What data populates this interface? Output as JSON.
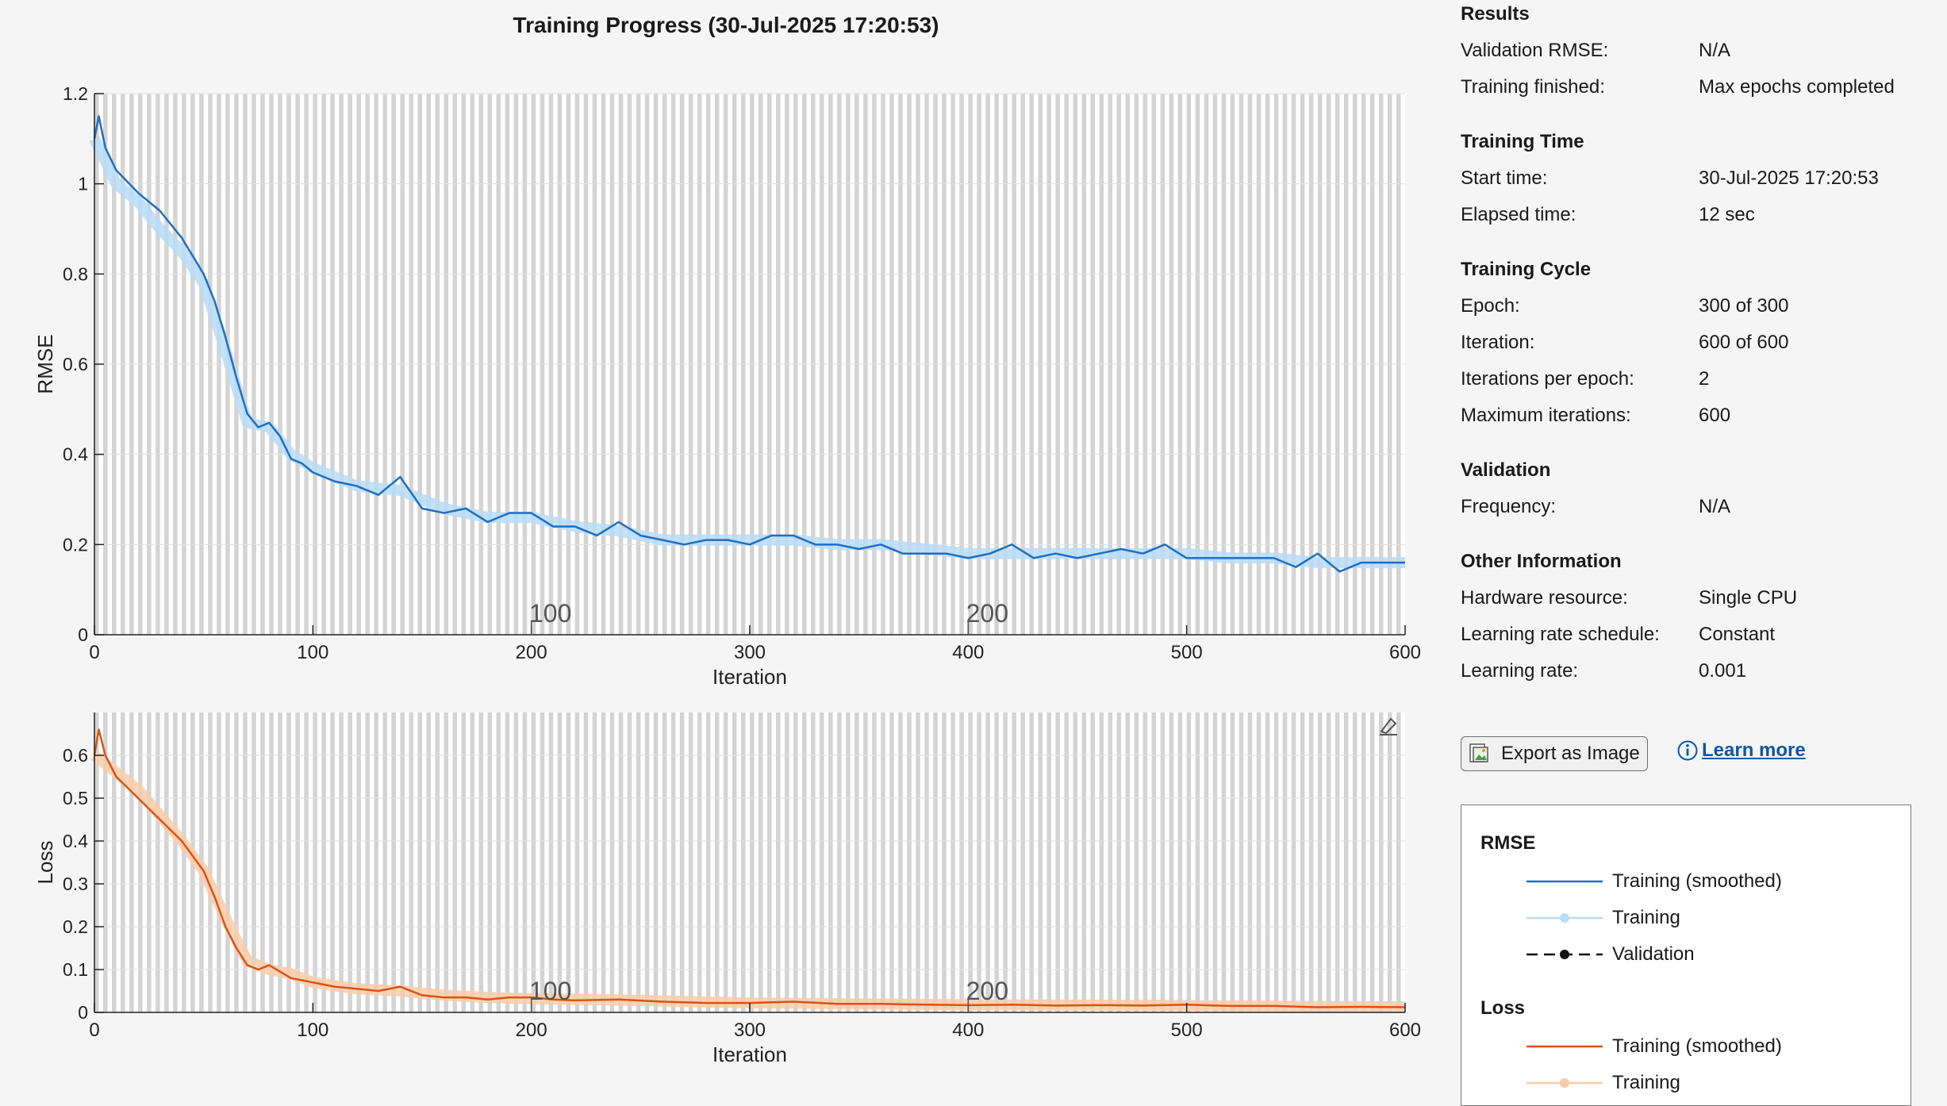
{
  "window": {
    "title": "Training Progress (30-Jul-2025 17:20:53)"
  },
  "colors": {
    "rmse_smoothed": "#1f6fbf",
    "rmse_raw": "#b9dcf7",
    "loss_smoothed": "#d95319",
    "loss_raw": "#f9cca8",
    "epoch_band": "#cccccc"
  },
  "sidebar": {
    "results": {
      "heading": "Results",
      "rows": [
        {
          "label": "Validation RMSE:",
          "value": "N/A"
        },
        {
          "label": "Training finished:",
          "value": "Max epochs completed"
        }
      ]
    },
    "training_time": {
      "heading": "Training Time",
      "rows": [
        {
          "label": "Start time:",
          "value": "30-Jul-2025 17:20:53"
        },
        {
          "label": "Elapsed time:",
          "value": "12 sec"
        }
      ]
    },
    "training_cycle": {
      "heading": "Training Cycle",
      "rows": [
        {
          "label": "Epoch:",
          "value": "300 of 300"
        },
        {
          "label": "Iteration:",
          "value": "600 of 600"
        },
        {
          "label": "Iterations per epoch:",
          "value": "2"
        },
        {
          "label": "Maximum iterations:",
          "value": "600"
        }
      ]
    },
    "validation": {
      "heading": "Validation",
      "rows": [
        {
          "label": "Frequency:",
          "value": "N/A"
        }
      ]
    },
    "other": {
      "heading": "Other Information",
      "rows": [
        {
          "label": "Hardware resource:",
          "value": "Single CPU"
        },
        {
          "label": "Learning rate schedule:",
          "value": "Constant"
        },
        {
          "label": "Learning rate:",
          "value": "0.001"
        }
      ]
    }
  },
  "actions": {
    "export_label": "Export as Image",
    "learn_more_label": "Learn more"
  },
  "legend": {
    "rmse_heading": "RMSE",
    "loss_heading": "Loss",
    "rmse_items": [
      "Training (smoothed)",
      "Training",
      "Validation"
    ],
    "loss_items": [
      "Training (smoothed)",
      "Training"
    ]
  },
  "chart_data": [
    {
      "type": "line",
      "title": "",
      "xlabel": "Iteration",
      "ylabel": "RMSE",
      "xlim": [
        0,
        600
      ],
      "ylim": [
        0,
        1.2
      ],
      "xticks": [
        "0",
        "100",
        "200",
        "300",
        "400",
        "500",
        "600"
      ],
      "yticks": [
        "0",
        "0.2",
        "0.4",
        "0.6",
        "0.8",
        "1",
        "1.2"
      ],
      "epoch_ticks": [
        "100",
        "200"
      ],
      "series": [
        {
          "name": "Training (smoothed)",
          "x": [
            0,
            2,
            5,
            10,
            20,
            30,
            40,
            50,
            55,
            60,
            65,
            70,
            75,
            80,
            85,
            90,
            95,
            100,
            110,
            120,
            130,
            140,
            150,
            160,
            170,
            180,
            190,
            200,
            210,
            220,
            230,
            240,
            250,
            260,
            270,
            280,
            290,
            300,
            310,
            320,
            330,
            340,
            350,
            360,
            370,
            380,
            390,
            400,
            410,
            420,
            430,
            440,
            450,
            460,
            470,
            480,
            490,
            500,
            510,
            520,
            530,
            540,
            550,
            560,
            570,
            580,
            590,
            600
          ],
          "y": [
            1.1,
            1.15,
            1.08,
            1.03,
            0.98,
            0.94,
            0.88,
            0.8,
            0.74,
            0.66,
            0.57,
            0.49,
            0.46,
            0.47,
            0.44,
            0.39,
            0.38,
            0.36,
            0.34,
            0.33,
            0.31,
            0.35,
            0.28,
            0.27,
            0.28,
            0.25,
            0.27,
            0.27,
            0.24,
            0.24,
            0.22,
            0.25,
            0.22,
            0.21,
            0.2,
            0.21,
            0.21,
            0.2,
            0.22,
            0.22,
            0.2,
            0.2,
            0.19,
            0.2,
            0.18,
            0.18,
            0.18,
            0.17,
            0.18,
            0.2,
            0.17,
            0.18,
            0.17,
            0.18,
            0.19,
            0.18,
            0.2,
            0.17,
            0.17,
            0.17,
            0.17,
            0.17,
            0.15,
            0.18,
            0.14,
            0.16,
            0.16,
            0.16
          ]
        },
        {
          "name": "Training",
          "x": [
            0,
            5,
            10,
            20,
            30,
            40,
            50,
            60,
            70,
            80,
            90,
            100,
            120,
            140,
            160,
            180,
            200,
            220,
            240,
            260,
            280,
            300,
            320,
            340,
            360,
            380,
            400,
            420,
            440,
            460,
            480,
            500,
            520,
            540,
            560,
            580,
            600
          ],
          "y": [
            1.1,
            1.05,
            1.0,
            0.96,
            0.9,
            0.85,
            0.78,
            0.63,
            0.47,
            0.46,
            0.4,
            0.37,
            0.33,
            0.32,
            0.28,
            0.26,
            0.26,
            0.24,
            0.23,
            0.21,
            0.21,
            0.21,
            0.21,
            0.2,
            0.2,
            0.19,
            0.18,
            0.18,
            0.18,
            0.18,
            0.18,
            0.18,
            0.17,
            0.17,
            0.16,
            0.16,
            0.16
          ]
        }
      ]
    },
    {
      "type": "line",
      "title": "",
      "xlabel": "Iteration",
      "ylabel": "Loss",
      "xlim": [
        0,
        600
      ],
      "ylim": [
        0,
        0.7
      ],
      "xticks": [
        "0",
        "100",
        "200",
        "300",
        "400",
        "500",
        "600"
      ],
      "yticks": [
        "0",
        "0.1",
        "0.2",
        "0.3",
        "0.4",
        "0.5",
        "0.6"
      ],
      "epoch_ticks": [
        "100",
        "200"
      ],
      "series": [
        {
          "name": "Training (smoothed)",
          "x": [
            0,
            2,
            5,
            10,
            20,
            30,
            40,
            50,
            55,
            60,
            65,
            70,
            75,
            80,
            90,
            100,
            110,
            120,
            130,
            140,
            150,
            160,
            170,
            180,
            190,
            200,
            210,
            220,
            240,
            260,
            280,
            300,
            320,
            340,
            360,
            380,
            400,
            420,
            440,
            460,
            480,
            500,
            520,
            540,
            560,
            580,
            600
          ],
          "y": [
            0.6,
            0.66,
            0.6,
            0.55,
            0.5,
            0.45,
            0.4,
            0.33,
            0.27,
            0.2,
            0.15,
            0.11,
            0.1,
            0.11,
            0.08,
            0.07,
            0.06,
            0.055,
            0.05,
            0.06,
            0.04,
            0.035,
            0.035,
            0.03,
            0.035,
            0.035,
            0.03,
            0.028,
            0.03,
            0.025,
            0.022,
            0.022,
            0.025,
            0.02,
            0.02,
            0.018,
            0.017,
            0.018,
            0.016,
            0.017,
            0.016,
            0.018,
            0.015,
            0.015,
            0.012,
            0.013,
            0.012
          ]
        },
        {
          "name": "Training",
          "x": [
            0,
            10,
            20,
            30,
            40,
            50,
            60,
            70,
            80,
            90,
            100,
            120,
            140,
            160,
            180,
            200,
            250,
            300,
            350,
            400,
            450,
            500,
            550,
            600
          ],
          "y": [
            0.6,
            0.56,
            0.52,
            0.46,
            0.4,
            0.33,
            0.22,
            0.12,
            0.1,
            0.09,
            0.07,
            0.055,
            0.05,
            0.04,
            0.035,
            0.032,
            0.028,
            0.022,
            0.02,
            0.018,
            0.017,
            0.016,
            0.014,
            0.013
          ]
        }
      ]
    }
  ]
}
